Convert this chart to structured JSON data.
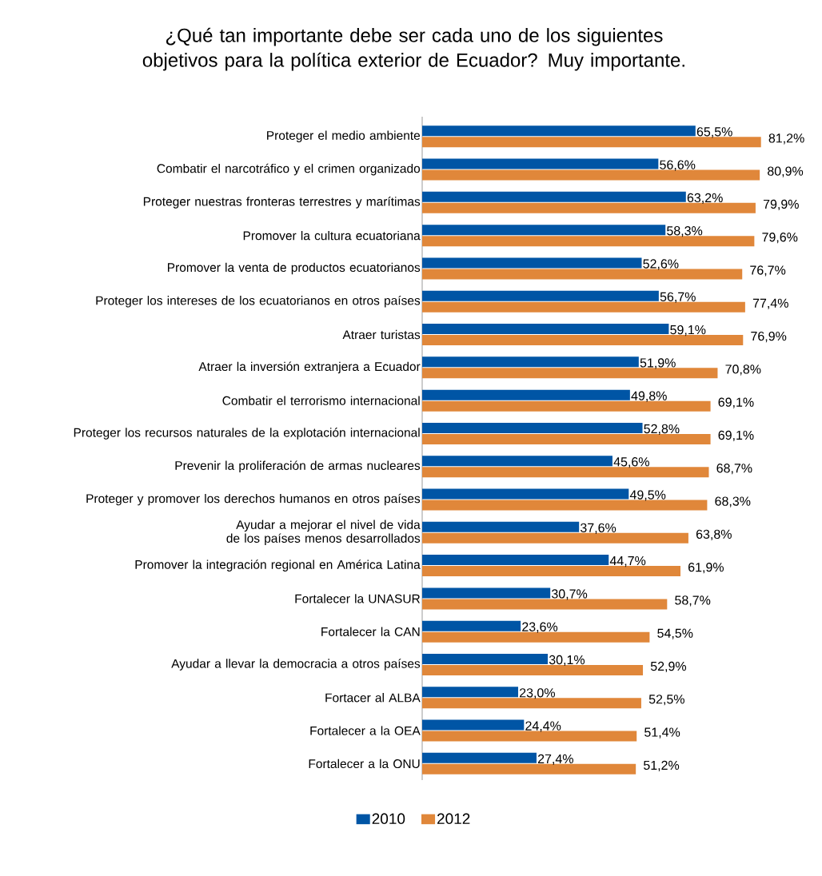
{
  "chart_data": {
    "type": "bar",
    "orientation": "horizontal",
    "title": "¿Qué tan importante debe ser cada uno de los siguientes objetivos para la política exterior de Ecuador? Muy importante.",
    "categories": [
      "Proteger el medio ambiente",
      "Combatir el narcotráfico y el crimen organizado",
      "Proteger nuestras fronteras terrestres y marítimas",
      "Promover la cultura ecuatoriana",
      "Promover la venta de productos ecuatorianos",
      "Proteger los intereses de los ecuatorianos en otros países",
      "Atraer turistas",
      "Atraer la inversión extranjera a Ecuador",
      "Combatir el terrorismo internacional",
      "Proteger los recursos naturales de la explotación internacional",
      "Prevenir la proliferación de armas nucleares",
      "Proteger y promover los derechos humanos en otros países",
      "Ayudar a mejorar el nivel de vida de los países menos desarrollados",
      "Promover la integración regional en América Latina",
      "Fortalecer la UNASUR",
      "Fortalecer la CAN",
      "Ayudar a llevar la democracia a otros países",
      "Fortacer al ALBA",
      "Fortalecer a la OEA",
      "Fortalecer a la ONU"
    ],
    "series": [
      {
        "name": "2010",
        "color": "#0055a5",
        "values": [
          65.5,
          56.6,
          63.2,
          58.3,
          52.6,
          56.7,
          59.1,
          51.9,
          49.8,
          52.8,
          45.6,
          49.5,
          37.6,
          44.7,
          30.7,
          23.6,
          30.1,
          23.0,
          24.4,
          27.4
        ],
        "value_labels": [
          "65,5%",
          "56,6%",
          "63,2%",
          "58,3%",
          "52,6%",
          "56,7%",
          "59,1%",
          "51,9%",
          "49,8%",
          "52,8%",
          "45,6%",
          "49,5%",
          "37,6%",
          "44,7%",
          "30,7%",
          "23,6%",
          "30,1%",
          "23,0%",
          "24,4%",
          "27,4%"
        ]
      },
      {
        "name": "2012",
        "color": "#e0873a",
        "values": [
          81.2,
          80.9,
          79.9,
          79.6,
          76.7,
          77.4,
          76.9,
          70.8,
          69.1,
          69.1,
          68.7,
          68.3,
          63.8,
          61.9,
          58.7,
          54.5,
          52.9,
          52.5,
          51.4,
          51.2
        ],
        "value_labels": [
          "81,2%",
          "80,9%",
          "79,9%",
          "79,6%",
          "76,7%",
          "77,4%",
          "76,9%",
          "70,8%",
          "69,1%",
          "69,1%",
          "68,7%",
          "68,3%",
          "63,8%",
          "61,9%",
          "58,7%",
          "54,5%",
          "52,9%",
          "52,5%",
          "51,4%",
          "51,2%"
        ]
      }
    ],
    "legend": "bottom"
  }
}
